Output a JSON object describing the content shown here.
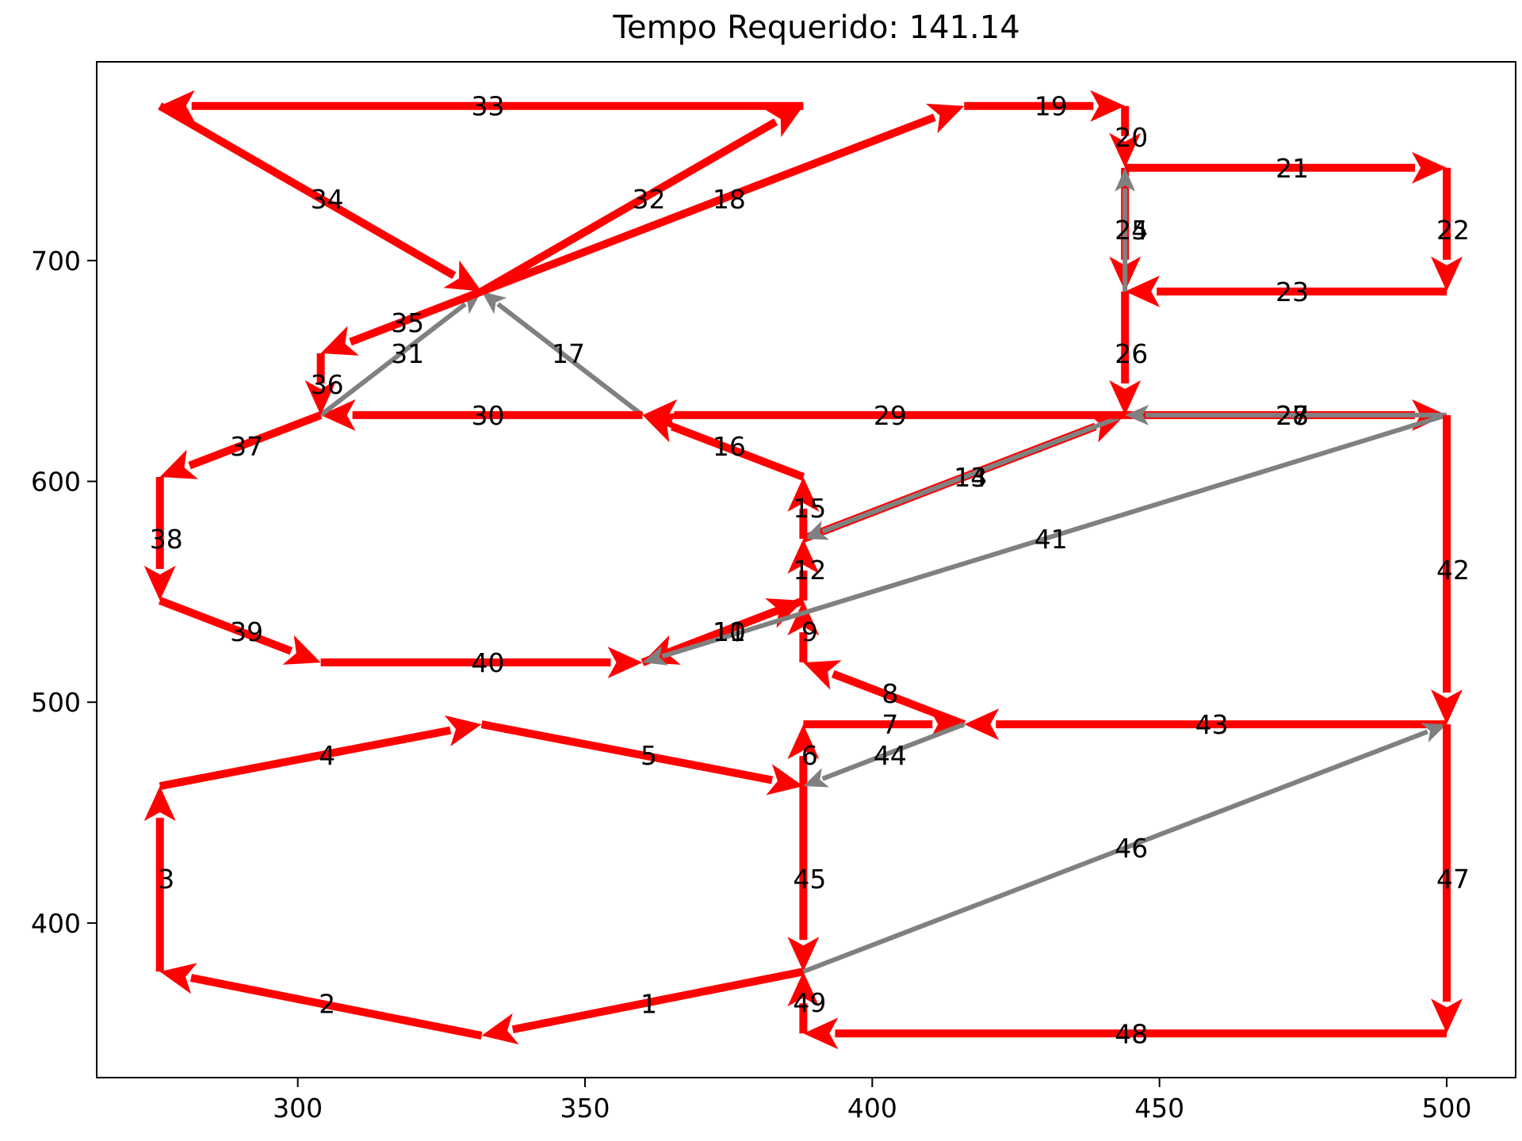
{
  "chart_data": {
    "type": "line",
    "title": "Tempo Requerido: 141.14",
    "xlabel": "",
    "ylabel": "",
    "xlim": [
      265,
      512
    ],
    "ylim": [
      330,
      790
    ],
    "xticks": [
      300,
      350,
      400,
      450,
      500
    ],
    "yticks": [
      400,
      500,
      600,
      700
    ],
    "grid": false,
    "colors": {
      "route": "#ff0000",
      "deadhead": "#808080"
    },
    "segments": [
      {
        "label": "1",
        "from": [
          388,
          378
        ],
        "to": [
          332,
          349
        ],
        "kind": "route"
      },
      {
        "label": "2",
        "from": [
          332,
          349
        ],
        "to": [
          276,
          378
        ],
        "kind": "route"
      },
      {
        "label": "3",
        "from": [
          276,
          378
        ],
        "to": [
          276,
          462
        ],
        "kind": "route"
      },
      {
        "label": "4",
        "from": [
          276,
          462
        ],
        "to": [
          332,
          490
        ],
        "kind": "route"
      },
      {
        "label": "5",
        "from": [
          332,
          490
        ],
        "to": [
          388,
          462
        ],
        "kind": "route"
      },
      {
        "label": "6",
        "from": [
          388,
          462
        ],
        "to": [
          388,
          490
        ],
        "kind": "route"
      },
      {
        "label": "7",
        "from": [
          388,
          490
        ],
        "to": [
          416,
          490
        ],
        "kind": "route"
      },
      {
        "label": "8",
        "from": [
          416,
          490
        ],
        "to": [
          388,
          518
        ],
        "kind": "route"
      },
      {
        "label": "9",
        "from": [
          388,
          518
        ],
        "to": [
          388,
          546
        ],
        "kind": "route"
      },
      {
        "label": "10",
        "from": [
          388,
          546
        ],
        "to": [
          360,
          518
        ],
        "kind": "route"
      },
      {
        "label": "11",
        "from": [
          360,
          518
        ],
        "to": [
          388,
          546
        ],
        "kind": "route"
      },
      {
        "label": "12",
        "from": [
          388,
          546
        ],
        "to": [
          388,
          574
        ],
        "kind": "route"
      },
      {
        "label": "13",
        "from": [
          388,
          574
        ],
        "to": [
          444,
          630
        ],
        "kind": "route"
      },
      {
        "label": "14",
        "from": [
          444,
          630
        ],
        "to": [
          388,
          574
        ],
        "kind": "deadhead"
      },
      {
        "label": "15",
        "from": [
          388,
          574
        ],
        "to": [
          388,
          602
        ],
        "kind": "route"
      },
      {
        "label": "16",
        "from": [
          388,
          602
        ],
        "to": [
          360,
          630
        ],
        "kind": "route"
      },
      {
        "label": "17",
        "from": [
          360,
          630
        ],
        "to": [
          332,
          686
        ],
        "kind": "deadhead"
      },
      {
        "label": "18",
        "from": [
          332,
          686
        ],
        "to": [
          416,
          770
        ],
        "kind": "route"
      },
      {
        "label": "19",
        "from": [
          416,
          770
        ],
        "to": [
          444,
          770
        ],
        "kind": "route"
      },
      {
        "label": "20",
        "from": [
          444,
          770
        ],
        "to": [
          444,
          742
        ],
        "kind": "route"
      },
      {
        "label": "21",
        "from": [
          444,
          742
        ],
        "to": [
          500,
          742
        ],
        "kind": "route"
      },
      {
        "label": "22",
        "from": [
          500,
          742
        ],
        "to": [
          500,
          686
        ],
        "kind": "route"
      },
      {
        "label": "23",
        "from": [
          500,
          686
        ],
        "to": [
          444,
          686
        ],
        "kind": "route"
      },
      {
        "label": "24",
        "from": [
          444,
          742
        ],
        "to": [
          444,
          686
        ],
        "kind": "route"
      },
      {
        "label": "25",
        "from": [
          444,
          686
        ],
        "to": [
          444,
          742
        ],
        "kind": "deadhead"
      },
      {
        "label": "26",
        "from": [
          444,
          686
        ],
        "to": [
          444,
          630
        ],
        "kind": "route"
      },
      {
        "label": "27",
        "from": [
          444,
          630
        ],
        "to": [
          500,
          630
        ],
        "kind": "route"
      },
      {
        "label": "28",
        "from": [
          500,
          630
        ],
        "to": [
          444,
          630
        ],
        "kind": "deadhead"
      },
      {
        "label": "29",
        "from": [
          444,
          630
        ],
        "to": [
          360,
          630
        ],
        "kind": "route"
      },
      {
        "label": "30",
        "from": [
          360,
          630
        ],
        "to": [
          304,
          630
        ],
        "kind": "route"
      },
      {
        "label": "31",
        "from": [
          304,
          630
        ],
        "to": [
          332,
          686
        ],
        "kind": "deadhead"
      },
      {
        "label": "32",
        "from": [
          332,
          686
        ],
        "to": [
          388,
          770
        ],
        "kind": "route"
      },
      {
        "label": "33",
        "from": [
          388,
          770
        ],
        "to": [
          276,
          770
        ],
        "kind": "route"
      },
      {
        "label": "34",
        "from": [
          276,
          770
        ],
        "to": [
          332,
          686
        ],
        "kind": "route"
      },
      {
        "label": "35",
        "from": [
          332,
          686
        ],
        "to": [
          304,
          658
        ],
        "kind": "route"
      },
      {
        "label": "36",
        "from": [
          304,
          658
        ],
        "to": [
          304,
          630
        ],
        "kind": "route"
      },
      {
        "label": "37",
        "from": [
          304,
          630
        ],
        "to": [
          276,
          602
        ],
        "kind": "route"
      },
      {
        "label": "38",
        "from": [
          276,
          602
        ],
        "to": [
          276,
          546
        ],
        "kind": "route"
      },
      {
        "label": "39",
        "from": [
          276,
          546
        ],
        "to": [
          304,
          518
        ],
        "kind": "route"
      },
      {
        "label": "40",
        "from": [
          304,
          518
        ],
        "to": [
          360,
          518
        ],
        "kind": "route"
      },
      {
        "label": "41",
        "from": [
          500,
          630
        ],
        "to": [
          360,
          518
        ],
        "kind": "deadhead"
      },
      {
        "label": "42",
        "from": [
          500,
          630
        ],
        "to": [
          500,
          490
        ],
        "kind": "route"
      },
      {
        "label": "43",
        "from": [
          500,
          490
        ],
        "to": [
          416,
          490
        ],
        "kind": "route"
      },
      {
        "label": "44",
        "from": [
          416,
          490
        ],
        "to": [
          388,
          462
        ],
        "kind": "deadhead"
      },
      {
        "label": "45",
        "from": [
          388,
          462
        ],
        "to": [
          388,
          378
        ],
        "kind": "route"
      },
      {
        "label": "46",
        "from": [
          388,
          378
        ],
        "to": [
          500,
          490
        ],
        "kind": "deadhead"
      },
      {
        "label": "47",
        "from": [
          500,
          490
        ],
        "to": [
          500,
          350
        ],
        "kind": "route"
      },
      {
        "label": "48",
        "from": [
          500,
          350
        ],
        "to": [
          388,
          350
        ],
        "kind": "route"
      },
      {
        "label": "49",
        "from": [
          388,
          350
        ],
        "to": [
          388,
          378
        ],
        "kind": "route"
      }
    ]
  }
}
